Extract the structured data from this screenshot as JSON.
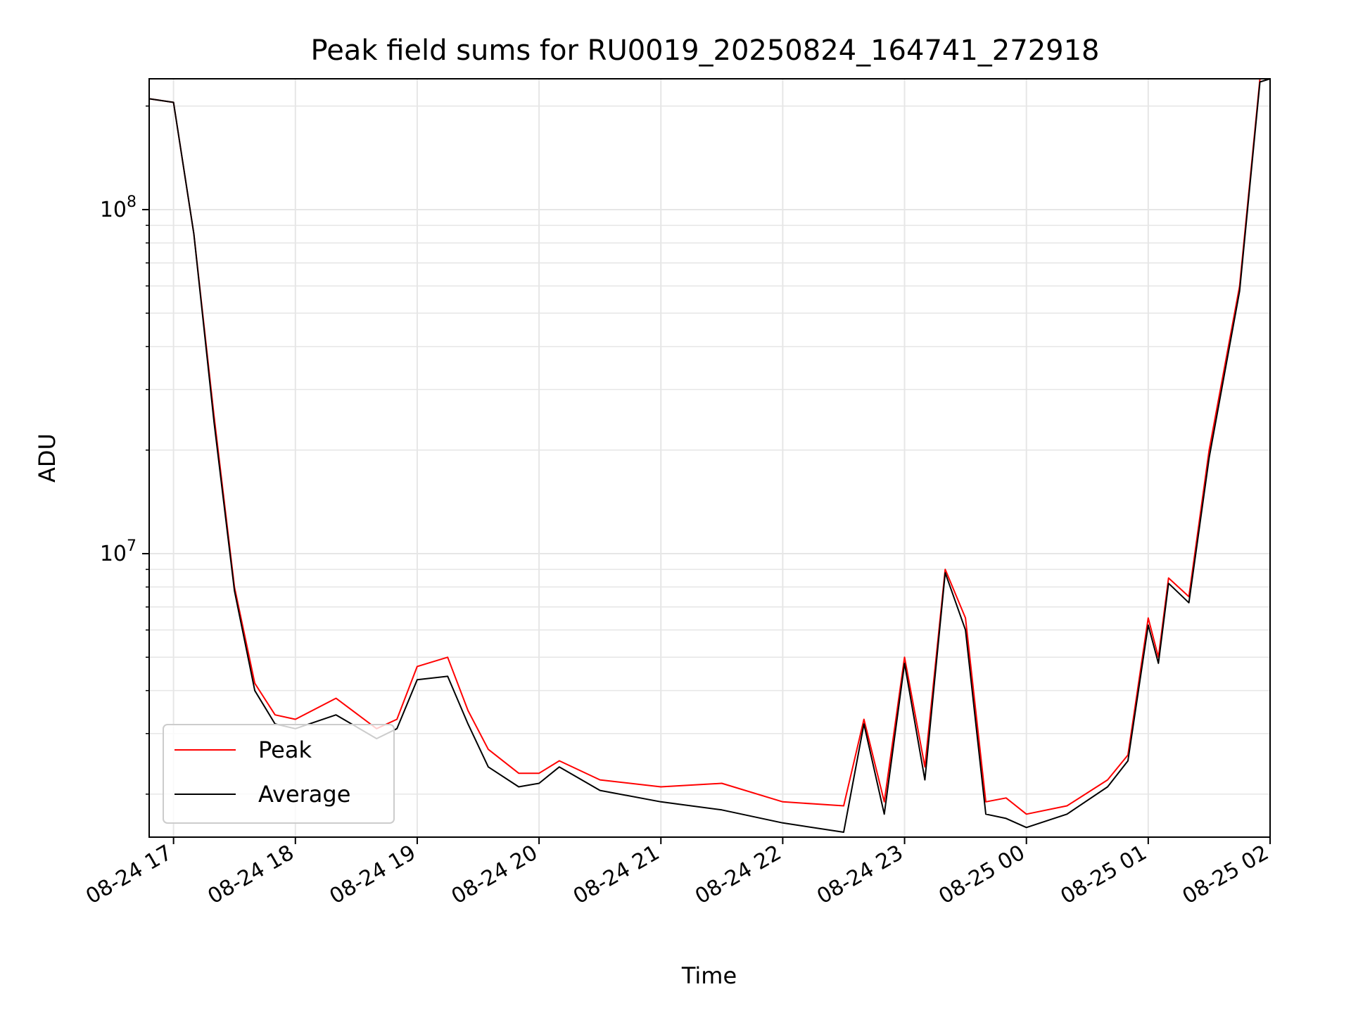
{
  "chart_data": {
    "type": "line",
    "title": "Peak field sums for RU0019_20250824_164741_272918",
    "xlabel": "Time",
    "ylabel": "ADU",
    "y_scale": "log",
    "ylim": [
      1500000,
      240000000
    ],
    "xlim": [
      "2025-08-24 16:48",
      "2025-08-25 02:00"
    ],
    "x_ticks": [
      "08-24 17",
      "08-24 18",
      "08-24 19",
      "08-24 20",
      "08-24 21",
      "08-24 22",
      "08-24 23",
      "08-25 00",
      "08-25 01",
      "08-25 02"
    ],
    "y_ticks": [
      {
        "label": "10",
        "exp": "7",
        "value": 10000000
      },
      {
        "label": "10",
        "exp": "8",
        "value": 100000000
      }
    ],
    "grid": true,
    "legend": "lower-left",
    "series": [
      {
        "name": "Peak",
        "color": "#ff0000",
        "x": [
          "2025-08-24 16:48",
          "2025-08-24 17:00",
          "2025-08-24 17:10",
          "2025-08-24 17:20",
          "2025-08-24 17:30",
          "2025-08-24 17:40",
          "2025-08-24 17:50",
          "2025-08-24 18:00",
          "2025-08-24 18:20",
          "2025-08-24 18:40",
          "2025-08-24 18:50",
          "2025-08-24 19:00",
          "2025-08-24 19:15",
          "2025-08-24 19:25",
          "2025-08-24 19:35",
          "2025-08-24 19:50",
          "2025-08-24 20:00",
          "2025-08-24 20:10",
          "2025-08-24 20:30",
          "2025-08-24 21:00",
          "2025-08-24 21:30",
          "2025-08-24 22:00",
          "2025-08-24 22:30",
          "2025-08-24 22:40",
          "2025-08-24 22:50",
          "2025-08-24 23:00",
          "2025-08-24 23:10",
          "2025-08-24 23:20",
          "2025-08-24 23:30",
          "2025-08-24 23:40",
          "2025-08-24 23:50",
          "2025-08-25 00:00",
          "2025-08-25 00:20",
          "2025-08-25 00:40",
          "2025-08-25 00:50",
          "2025-08-25 01:00",
          "2025-08-25 01:05",
          "2025-08-25 01:10",
          "2025-08-25 01:20",
          "2025-08-25 01:30",
          "2025-08-25 01:45",
          "2025-08-25 01:55",
          "2025-08-25 02:00"
        ],
        "y": [
          210000000,
          205000000,
          85000000,
          25000000,
          8000000,
          4200000,
          3400000,
          3300000,
          3800000,
          3100000,
          3300000,
          4700000,
          5000000,
          3500000,
          2700000,
          2300000,
          2300000,
          2500000,
          2200000,
          2100000,
          2150000,
          1900000,
          1850000,
          3300000,
          1900000,
          5000000,
          2400000,
          9000000,
          6500000,
          1900000,
          1950000,
          1750000,
          1850000,
          2200000,
          2600000,
          6500000,
          5000000,
          8500000,
          7500000,
          20000000,
          60000000,
          240000000,
          240000000
        ]
      },
      {
        "name": "Average",
        "color": "#000000",
        "x": [
          "2025-08-24 16:48",
          "2025-08-24 17:00",
          "2025-08-24 17:10",
          "2025-08-24 17:20",
          "2025-08-24 17:30",
          "2025-08-24 17:40",
          "2025-08-24 17:50",
          "2025-08-24 18:00",
          "2025-08-24 18:20",
          "2025-08-24 18:40",
          "2025-08-24 18:50",
          "2025-08-24 19:00",
          "2025-08-24 19:15",
          "2025-08-24 19:25",
          "2025-08-24 19:35",
          "2025-08-24 19:50",
          "2025-08-24 20:00",
          "2025-08-24 20:10",
          "2025-08-24 20:30",
          "2025-08-24 21:00",
          "2025-08-24 21:30",
          "2025-08-24 22:00",
          "2025-08-24 22:30",
          "2025-08-24 22:40",
          "2025-08-24 22:50",
          "2025-08-24 23:00",
          "2025-08-24 23:10",
          "2025-08-24 23:20",
          "2025-08-24 23:30",
          "2025-08-24 23:40",
          "2025-08-24 23:50",
          "2025-08-25 00:00",
          "2025-08-25 00:20",
          "2025-08-25 00:40",
          "2025-08-25 00:50",
          "2025-08-25 01:00",
          "2025-08-25 01:05",
          "2025-08-25 01:10",
          "2025-08-25 01:20",
          "2025-08-25 01:30",
          "2025-08-25 01:45",
          "2025-08-25 01:55",
          "2025-08-25 02:00"
        ],
        "y": [
          210000000,
          205000000,
          85000000,
          24000000,
          7800000,
          4000000,
          3200000,
          3100000,
          3400000,
          2900000,
          3100000,
          4300000,
          4400000,
          3200000,
          2400000,
          2100000,
          2150000,
          2400000,
          2050000,
          1900000,
          1800000,
          1650000,
          1550000,
          3200000,
          1750000,
          4800000,
          2200000,
          8800000,
          6000000,
          1750000,
          1700000,
          1600000,
          1750000,
          2100000,
          2500000,
          6200000,
          4800000,
          8200000,
          7200000,
          19000000,
          58000000,
          235000000,
          240000000
        ]
      }
    ]
  }
}
